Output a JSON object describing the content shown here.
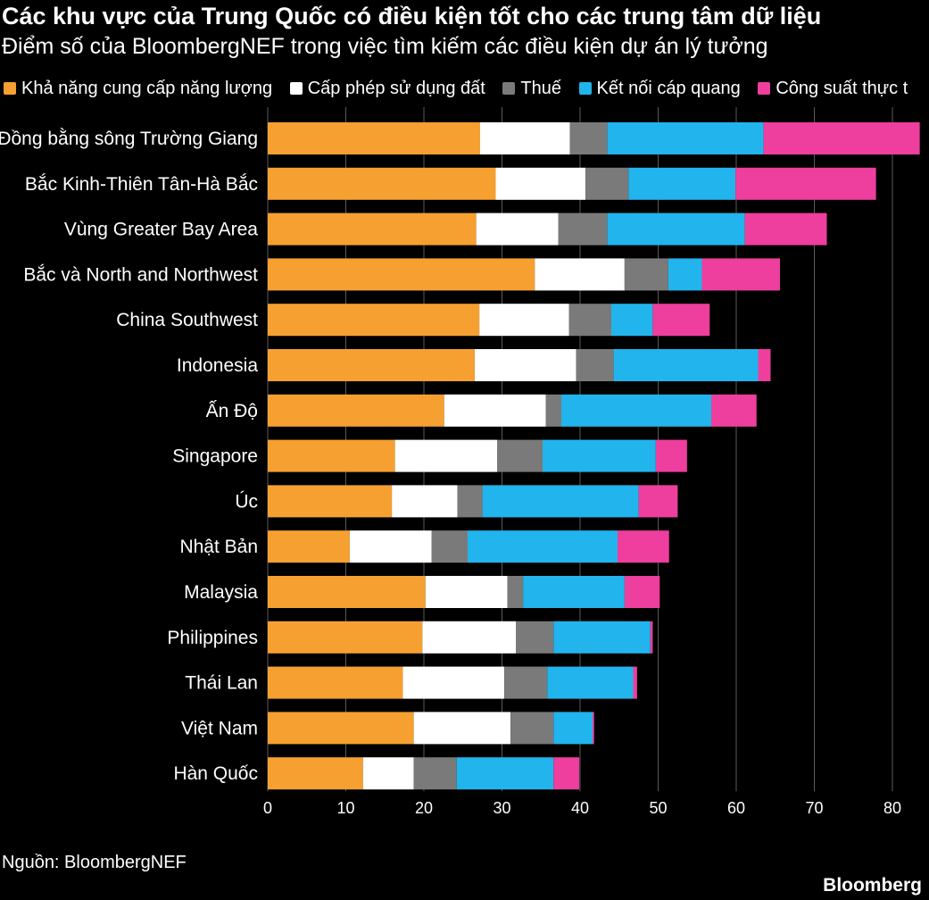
{
  "header": {
    "title": "Các khu vực của Trung Quốc có điều kiện tốt cho các trung tâm dữ liệu",
    "subtitle": "Điểm số của BloombergNEF trong việc tìm kiếm các điều kiện dự án lý tưởng"
  },
  "footer": {
    "source": "Nguồn: BloombergNEF",
    "brand": "Bloomberg"
  },
  "chart_data": {
    "type": "bar",
    "orientation": "horizontal",
    "stacked": true,
    "legend_position": "top",
    "xlim": [
      0,
      83
    ],
    "x_ticks": [
      0,
      10,
      20,
      30,
      40,
      50,
      60,
      70,
      80
    ],
    "grid": "vertical",
    "categories": [
      "Đồng bằng sông Trường Giang",
      "Bắc Kinh-Thiên Tân-Hà Bắc",
      "Vùng Greater Bay Area",
      "Bắc và North and Northwest",
      "China Southwest",
      "Indonesia",
      "Ấn Độ",
      "Singapore",
      "Úc",
      "Nhật Bản",
      "Malaysia",
      "Philippines",
      "Thái Lan",
      "Việt Nam",
      "Hàn Quốc"
    ],
    "series": [
      {
        "name": "Khả năng cung cấp năng lượng",
        "color": "#f5a030",
        "values": [
          27.2,
          29.2,
          26.7,
          34.2,
          27.1,
          26.5,
          22.6,
          16.3,
          15.9,
          10.5,
          20.2,
          19.8,
          17.3,
          18.7,
          12.2
        ]
      },
      {
        "name": "Cấp phép sử dụng đất",
        "color": "#ffffff",
        "values": [
          11.5,
          11.5,
          10.5,
          11.5,
          11.5,
          13.0,
          13.0,
          13.1,
          8.4,
          10.5,
          10.5,
          12.0,
          13.0,
          12.4,
          6.5
        ]
      },
      {
        "name": "Thuế",
        "color": "#7a7a7a",
        "values": [
          4.8,
          5.5,
          6.3,
          5.6,
          5.4,
          4.8,
          2.0,
          5.8,
          3.2,
          4.6,
          2.0,
          4.8,
          5.5,
          5.5,
          5.5
        ]
      },
      {
        "name": "Kết nối cáp quang",
        "color": "#22b4ec",
        "values": [
          20.0,
          13.7,
          17.6,
          4.3,
          5.3,
          18.5,
          19.2,
          14.5,
          20.0,
          19.2,
          13.0,
          12.4,
          11.0,
          5.0,
          12.4
        ]
      },
      {
        "name": "Công suất thực t",
        "color": "#ee3e9e",
        "values": [
          20.0,
          18.0,
          10.5,
          10.0,
          7.3,
          1.6,
          5.8,
          4.0,
          5.0,
          6.6,
          4.5,
          0.3,
          0.5,
          0.2,
          3.3
        ]
      }
    ]
  }
}
